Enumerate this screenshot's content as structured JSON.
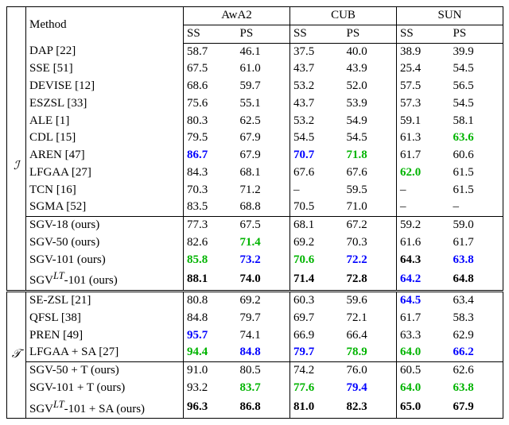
{
  "header": {
    "method": "Method",
    "datasets": [
      "AwA2",
      "CUB",
      "SUN"
    ],
    "splits": [
      "SS",
      "PS"
    ]
  },
  "categories": {
    "I": "ℐ",
    "T": "𝒯"
  },
  "font": {
    "family": "Times New Roman",
    "size_pt": 15
  },
  "colors": {
    "blue": "#0000ff",
    "green": "#00b400",
    "bold": "#000000",
    "bg": "#ffffff"
  },
  "sectionI_top": [
    {
      "method": "DAP [22]",
      "vals": [
        {
          "v": "58.7"
        },
        {
          "v": "46.1"
        },
        {
          "v": "37.5"
        },
        {
          "v": "40.0"
        },
        {
          "v": "38.9"
        },
        {
          "v": "39.9"
        }
      ]
    },
    {
      "method": "SSE [51]",
      "vals": [
        {
          "v": "67.5"
        },
        {
          "v": "61.0"
        },
        {
          "v": "43.7"
        },
        {
          "v": "43.9"
        },
        {
          "v": "25.4"
        },
        {
          "v": "54.5"
        }
      ]
    },
    {
      "method": "DEVISE [12]",
      "vals": [
        {
          "v": "68.6"
        },
        {
          "v": "59.7"
        },
        {
          "v": "53.2"
        },
        {
          "v": "52.0"
        },
        {
          "v": "57.5"
        },
        {
          "v": "56.5"
        }
      ]
    },
    {
      "method": "ESZSL [33]",
      "vals": [
        {
          "v": "75.6"
        },
        {
          "v": "55.1"
        },
        {
          "v": "43.7"
        },
        {
          "v": "53.9"
        },
        {
          "v": "57.3"
        },
        {
          "v": "54.5"
        }
      ]
    },
    {
      "method": "ALE [1]",
      "vals": [
        {
          "v": "80.3"
        },
        {
          "v": "62.5"
        },
        {
          "v": "53.2"
        },
        {
          "v": "54.9"
        },
        {
          "v": "59.1"
        },
        {
          "v": "58.1"
        }
      ]
    },
    {
      "method": "CDL [15]",
      "vals": [
        {
          "v": "79.5"
        },
        {
          "v": "67.9"
        },
        {
          "v": "54.5"
        },
        {
          "v": "54.5"
        },
        {
          "v": "61.3"
        },
        {
          "v": "63.6",
          "c": "green"
        }
      ]
    },
    {
      "method": "AREN [47]",
      "vals": [
        {
          "v": "86.7",
          "c": "blue"
        },
        {
          "v": "67.9"
        },
        {
          "v": "70.7",
          "c": "blue"
        },
        {
          "v": "71.8",
          "c": "green"
        },
        {
          "v": "61.7"
        },
        {
          "v": "60.6"
        }
      ]
    },
    {
      "method": "LFGAA [27]",
      "vals": [
        {
          "v": "84.3"
        },
        {
          "v": "68.1"
        },
        {
          "v": "67.6"
        },
        {
          "v": "67.6"
        },
        {
          "v": "62.0",
          "c": "green"
        },
        {
          "v": "61.5"
        }
      ]
    },
    {
      "method": "TCN [16]",
      "vals": [
        {
          "v": "70.3"
        },
        {
          "v": "71.2"
        },
        {
          "v": "–"
        },
        {
          "v": "59.5"
        },
        {
          "v": "–"
        },
        {
          "v": "61.5"
        }
      ]
    },
    {
      "method": "SGMA [52]",
      "vals": [
        {
          "v": "83.5"
        },
        {
          "v": "68.8"
        },
        {
          "v": "70.5"
        },
        {
          "v": "71.0"
        },
        {
          "v": "–"
        },
        {
          "v": "–"
        }
      ]
    }
  ],
  "sectionI_bot": [
    {
      "method": "SGV-18 (ours)",
      "vals": [
        {
          "v": "77.3"
        },
        {
          "v": "67.5"
        },
        {
          "v": "68.1"
        },
        {
          "v": "67.2"
        },
        {
          "v": "59.2"
        },
        {
          "v": "59.0"
        }
      ]
    },
    {
      "method": "SGV-50 (ours)",
      "vals": [
        {
          "v": "82.6"
        },
        {
          "v": "71.4",
          "c": "green"
        },
        {
          "v": "69.2"
        },
        {
          "v": "70.3"
        },
        {
          "v": "61.6"
        },
        {
          "v": "61.7"
        }
      ]
    },
    {
      "method": "SGV-101 (ours)",
      "vals": [
        {
          "v": "85.8",
          "c": "green"
        },
        {
          "v": "73.2",
          "c": "blue"
        },
        {
          "v": "70.6",
          "c": "green"
        },
        {
          "v": "72.2",
          "c": "blue"
        },
        {
          "v": "64.3",
          "c": "bold"
        },
        {
          "v": "63.8",
          "c": "blue"
        }
      ]
    },
    {
      "method": "SGVLT-101 (ours)",
      "method_html": "SGV<sup><i>LT</i></sup>-101 (ours)",
      "vals": [
        {
          "v": "88.1",
          "c": "bold"
        },
        {
          "v": "74.0",
          "c": "bold"
        },
        {
          "v": "71.4",
          "c": "bold"
        },
        {
          "v": "72.8",
          "c": "bold"
        },
        {
          "v": "64.2",
          "c": "blue"
        },
        {
          "v": "64.8",
          "c": "bold"
        }
      ]
    }
  ],
  "sectionT_top": [
    {
      "method": "SE-ZSL [21]",
      "vals": [
        {
          "v": "80.8"
        },
        {
          "v": "69.2"
        },
        {
          "v": "60.3"
        },
        {
          "v": "59.6"
        },
        {
          "v": "64.5",
          "c": "blue"
        },
        {
          "v": "63.4"
        }
      ]
    },
    {
      "method": "QFSL [38]",
      "vals": [
        {
          "v": "84.8"
        },
        {
          "v": "79.7"
        },
        {
          "v": "69.7"
        },
        {
          "v": "72.1"
        },
        {
          "v": "61.7"
        },
        {
          "v": "58.3"
        }
      ]
    },
    {
      "method": "PREN [49]",
      "vals": [
        {
          "v": "95.7",
          "c": "blue"
        },
        {
          "v": "74.1"
        },
        {
          "v": "66.9"
        },
        {
          "v": "66.4"
        },
        {
          "v": "63.3"
        },
        {
          "v": "62.9"
        }
      ]
    },
    {
      "method": "LFGAA + SA [27]",
      "vals": [
        {
          "v": "94.4",
          "c": "green"
        },
        {
          "v": "84.8",
          "c": "blue"
        },
        {
          "v": "79.7",
          "c": "blue"
        },
        {
          "v": "78.9",
          "c": "green"
        },
        {
          "v": "64.0",
          "c": "green"
        },
        {
          "v": "66.2",
          "c": "blue"
        }
      ]
    }
  ],
  "sectionT_bot": [
    {
      "method": "SGV-50 + T (ours)",
      "vals": [
        {
          "v": "91.0"
        },
        {
          "v": "80.5"
        },
        {
          "v": "74.2"
        },
        {
          "v": "76.0"
        },
        {
          "v": "60.5"
        },
        {
          "v": "62.6"
        }
      ]
    },
    {
      "method": "SGV-101 + T (ours)",
      "vals": [
        {
          "v": "93.2"
        },
        {
          "v": "83.7",
          "c": "green"
        },
        {
          "v": "77.6",
          "c": "green"
        },
        {
          "v": "79.4",
          "c": "blue"
        },
        {
          "v": "64.0",
          "c": "green"
        },
        {
          "v": "63.8",
          "c": "green"
        }
      ]
    },
    {
      "method": "SGVLT-101 + SA (ours)",
      "method_html": "SGV<sup><i>LT</i></sup>-101 + SA (ours)",
      "vals": [
        {
          "v": "96.3",
          "c": "bold"
        },
        {
          "v": "86.8",
          "c": "bold"
        },
        {
          "v": "81.0",
          "c": "bold"
        },
        {
          "v": "82.3",
          "c": "bold"
        },
        {
          "v": "65.0",
          "c": "bold"
        },
        {
          "v": "67.9",
          "c": "bold"
        }
      ]
    }
  ]
}
